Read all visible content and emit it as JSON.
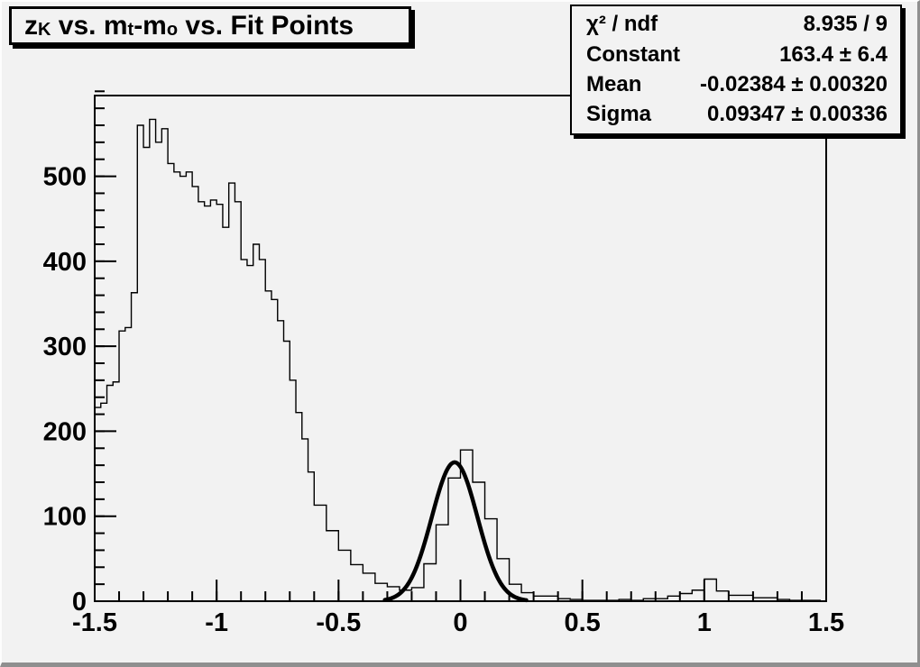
{
  "canvas": {
    "bg_color": "#f2f2f2",
    "line_color": "#000000",
    "bevel_light": "#fdfdfd",
    "bevel_dark": "#8f8f8f"
  },
  "title_box": {
    "plain_text": "zK vs. mt-mo vs. Fit Points",
    "segments": [
      {
        "text": "z",
        "sub": false
      },
      {
        "text": "K",
        "sub": true
      },
      {
        "text": " vs. m",
        "sub": false
      },
      {
        "text": "t",
        "sub": true
      },
      {
        "text": "-m",
        "sub": false
      },
      {
        "text": "o",
        "sub": true
      },
      {
        "text": " vs. Fit Points",
        "sub": false
      }
    ]
  },
  "stats_box": {
    "rows": [
      {
        "label": "χ² / ndf",
        "value": "8.935 / 9"
      },
      {
        "label": "Constant",
        "value": "163.4 ± 6.4"
      },
      {
        "label": "Mean",
        "value": "-0.02384 ± 0.00320"
      },
      {
        "label": "Sigma",
        "value": "0.09347 ± 0.00336"
      }
    ]
  },
  "chart_data": {
    "type": "bar",
    "subtype": "step-histogram",
    "title": "zK vs. mt-mo vs. Fit Points",
    "xlabel": "",
    "ylabel": "",
    "xlim": [
      -1.5,
      1.5
    ],
    "ylim": [
      0,
      595
    ],
    "grid": false,
    "legend": null,
    "x_major_ticks": [
      -1.5,
      -1,
      -0.5,
      0,
      0.5,
      1,
      1.5
    ],
    "x_tick_labels": [
      "-1.5",
      "-1",
      "-0.5",
      "0",
      "0.5",
      "1",
      "1.5"
    ],
    "x_minor_step": 0.1,
    "y_major_ticks": [
      0,
      100,
      200,
      300,
      400,
      500
    ],
    "y_tick_labels": [
      "0",
      "100",
      "200",
      "300",
      "400",
      "500"
    ],
    "y_minor_step": 20,
    "bin_start": -1.5,
    "bin_width": 0.025,
    "counts": [
      228,
      233,
      254,
      258,
      318,
      322,
      363,
      560,
      534,
      567,
      540,
      556,
      515,
      505,
      500,
      505,
      488,
      470,
      465,
      472,
      467,
      440,
      492,
      470,
      402,
      395,
      420,
      402,
      365,
      355,
      330,
      306,
      260,
      222,
      191,
      152,
      113,
      113,
      83,
      83,
      60,
      60,
      43,
      43,
      33,
      33,
      21,
      21,
      17,
      17,
      13,
      13,
      16,
      16,
      44,
      44,
      90,
      90,
      145,
      145,
      178,
      178,
      140,
      140,
      97,
      97,
      50,
      50,
      20,
      20,
      10,
      10,
      6,
      6,
      6,
      6,
      3,
      3,
      2,
      2,
      1,
      1,
      1,
      1,
      1,
      1,
      2,
      2,
      1,
      1,
      3,
      3,
      3,
      3,
      6,
      6,
      9,
      9,
      13,
      13,
      26,
      26,
      12,
      12,
      7,
      7,
      7,
      7,
      4,
      4,
      4,
      4,
      2,
      2,
      1,
      1,
      1,
      1,
      1,
      0
    ],
    "fit": {
      "shape": "gaussian",
      "chi2": 8.935,
      "ndf": 9,
      "constant": 163.4,
      "constant_err": 6.4,
      "mean": -0.02384,
      "mean_err": 0.0032,
      "sigma": 0.09347,
      "sigma_err": 0.00336,
      "draw_range": [
        -0.31,
        0.27
      ]
    }
  }
}
